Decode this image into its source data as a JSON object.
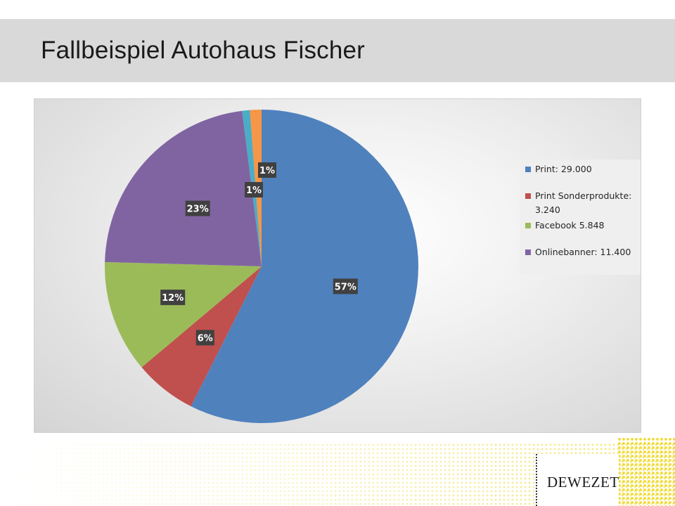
{
  "slide": {
    "title": "Fallbeispiel Autohaus Fischer",
    "logo_text": "DEWEZET"
  },
  "chart_data": {
    "type": "pie",
    "slices": [
      {
        "name": "Print: 29.000",
        "value": 29000,
        "label": "57%",
        "color": "#4f81bd"
      },
      {
        "name": "Print Sonderprodukte: 3.240",
        "value": 3240,
        "label": "6%",
        "color": "#c0504d"
      },
      {
        "name": "Facebook 5.848",
        "value": 5848,
        "label": "12%",
        "color": "#9bbb59"
      },
      {
        "name": "Onlinebanner: 11.400",
        "value": 11400,
        "label": "23%",
        "color": "#8064a2"
      },
      {
        "name": "",
        "value": 400,
        "label": "1%",
        "color": "#4bacc6"
      },
      {
        "name": "",
        "value": 600,
        "label": "1%",
        "color": "#f79646"
      }
    ],
    "legend": {
      "position": "right",
      "entries": [
        {
          "label": "Print: 29.000",
          "color": "#4f81bd"
        },
        {
          "label": "Print Sonderprodukte: 3.240",
          "color": "#c0504d"
        },
        {
          "label": "Facebook 5.848",
          "color": "#9bbb59"
        },
        {
          "label": "Onlinebanner: 11.400",
          "color": "#8064a2"
        }
      ]
    }
  }
}
